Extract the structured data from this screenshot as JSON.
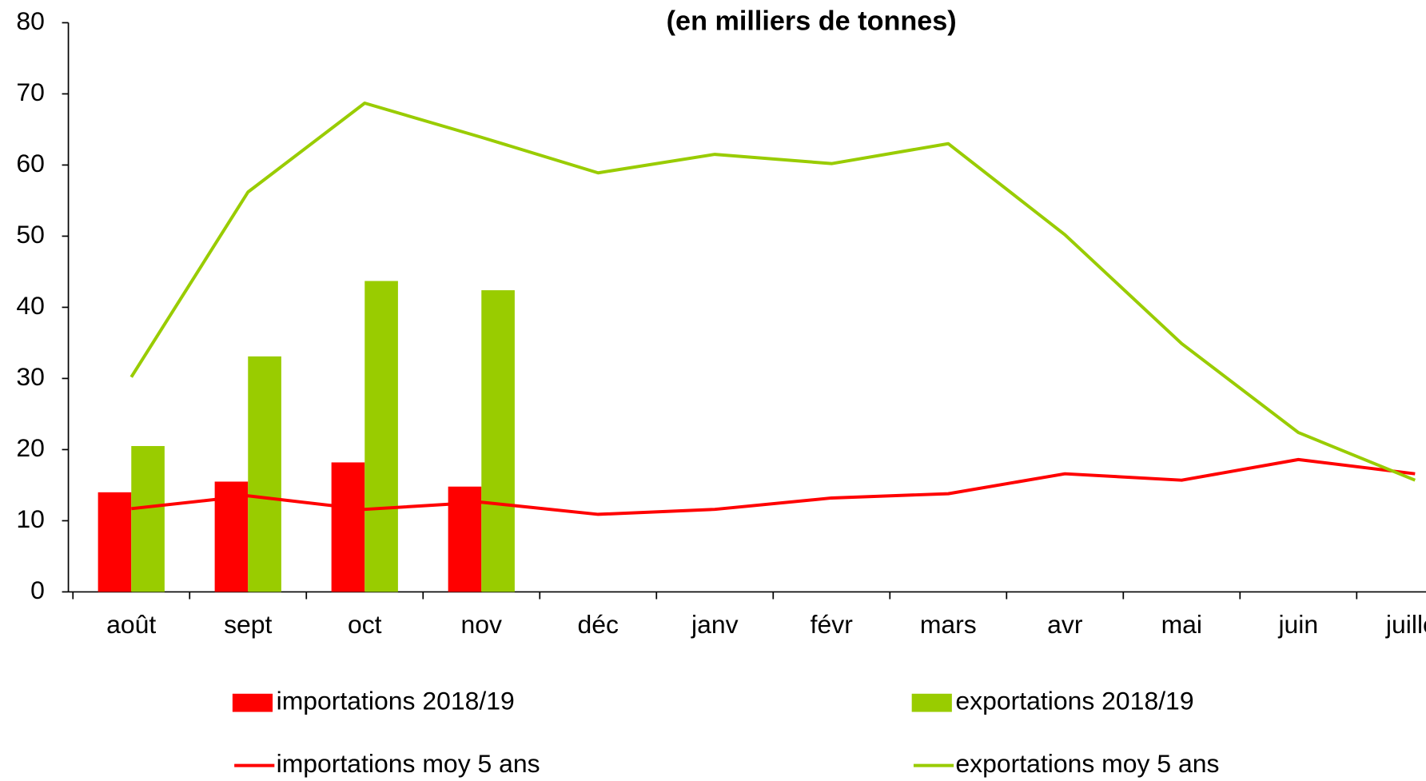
{
  "chart_data": {
    "type": "bar",
    "subtitle": "(en milliers de tonnes)",
    "categories": [
      "août",
      "sept",
      "oct",
      "nov",
      "déc",
      "janv",
      "févr",
      "mars",
      "avr",
      "mai",
      "juin",
      "juillet"
    ],
    "series": [
      {
        "name": "importations 2018/19",
        "type": "bar",
        "color": "#ff0000",
        "values": [
          14,
          15.5,
          18.2,
          14.8,
          null,
          null,
          null,
          null,
          null,
          null,
          null,
          null
        ]
      },
      {
        "name": "exportations 2018/19",
        "type": "bar",
        "color": "#99cc00",
        "values": [
          20.5,
          33.1,
          43.7,
          42.4,
          null,
          null,
          null,
          null,
          null,
          null,
          null,
          null
        ]
      },
      {
        "name": "importations moy 5 ans",
        "type": "line",
        "color": "#ff0000",
        "values": [
          11.7,
          13.5,
          11.6,
          12.6,
          10.9,
          11.6,
          13.2,
          13.8,
          16.6,
          15.7,
          18.6,
          16.6
        ]
      },
      {
        "name": "exportations moy 5 ans",
        "type": "line",
        "color": "#99cc00",
        "values": [
          30.2,
          56.2,
          68.7,
          63.9,
          58.9,
          61.5,
          60.2,
          63.0,
          50.2,
          34.9,
          22.4,
          15.7
        ]
      }
    ],
    "ylim": [
      0,
      80
    ],
    "yticks": [
      0,
      10,
      20,
      30,
      40,
      50,
      60,
      70,
      80
    ],
    "grid": false,
    "legend": "bottom"
  }
}
